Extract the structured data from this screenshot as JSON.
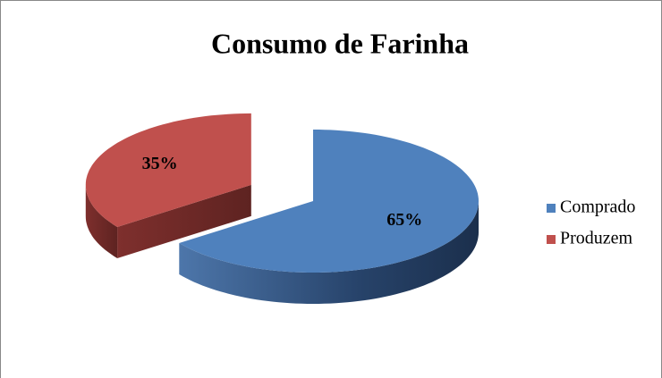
{
  "chart_data": {
    "type": "pie",
    "title": "Consumo de Farinha",
    "categories": [
      "Comprado",
      "Produzem"
    ],
    "values": [
      65,
      35
    ],
    "value_labels": [
      "65%",
      "35%"
    ],
    "colors": [
      "#4f81bd",
      "#c0504d"
    ],
    "legend": "right",
    "exploded": [
      false,
      true
    ]
  }
}
